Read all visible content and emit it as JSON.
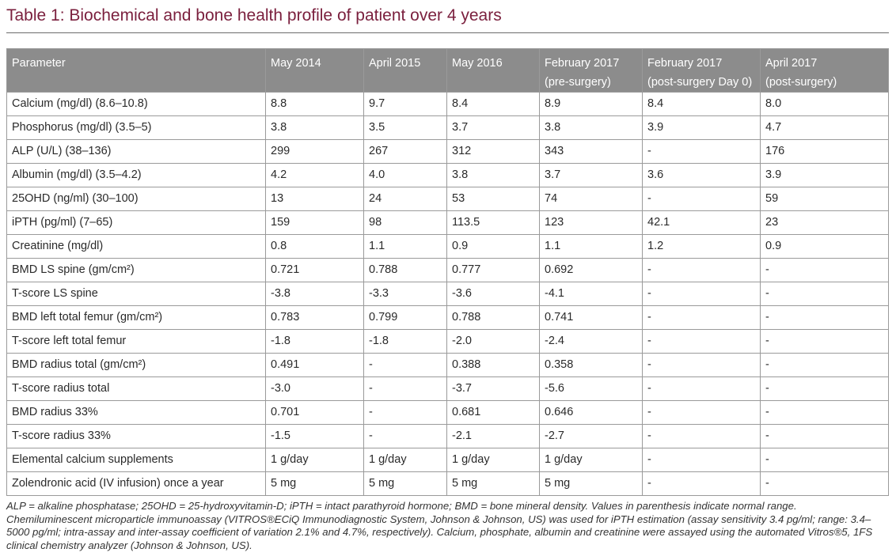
{
  "title": "Table 1: Biochemical and bone health profile of patient over 4 years",
  "table": {
    "headers": [
      "Parameter",
      "May 2014",
      "April 2015",
      "May 2016",
      "February 2017\n(pre-surgery)",
      "February 2017\n(post-surgery Day 0)",
      "April 2017\n(post-surgery)"
    ],
    "rows": [
      [
        "Calcium (mg/dl) (8.6–10.8)",
        "8.8",
        "9.7",
        "8.4",
        "8.9",
        "8.4",
        "8.0"
      ],
      [
        "Phosphorus (mg/dl) (3.5–5)",
        "3.8",
        "3.5",
        "3.7",
        "3.8",
        "3.9",
        "4.7"
      ],
      [
        "ALP (U/L) (38–136)",
        "299",
        "267",
        "312",
        "343",
        "-",
        "176"
      ],
      [
        "Albumin (mg/dl) (3.5–4.2)",
        "4.2",
        "4.0",
        "3.8",
        "3.7",
        "3.6",
        "3.9"
      ],
      [
        "25OHD (ng/ml) (30–100)",
        "13",
        "24",
        "53",
        "74",
        "-",
        "59"
      ],
      [
        "iPTH (pg/ml) (7–65)",
        "159",
        "98",
        "113.5",
        "123",
        "42.1",
        "23"
      ],
      [
        "Creatinine (mg/dl)",
        "0.8",
        "1.1",
        "0.9",
        "1.1",
        "1.2",
        "0.9"
      ],
      [
        "BMD LS spine (gm/cm²)",
        "0.721",
        "0.788",
        "0.777",
        "0.692",
        "-",
        "-"
      ],
      [
        "T-score LS spine",
        "-3.8",
        "-3.3",
        "-3.6",
        "-4.1",
        "-",
        "-"
      ],
      [
        "BMD left total femur (gm/cm²)",
        "0.783",
        "0.799",
        "0.788",
        "0.741",
        "-",
        "-"
      ],
      [
        "T-score left total femur",
        "-1.8",
        "-1.8",
        "-2.0",
        "-2.4",
        "-",
        "-"
      ],
      [
        "BMD radius total (gm/cm²)",
        "0.491",
        "-",
        "0.388",
        "0.358",
        "-",
        "-"
      ],
      [
        "T-score radius total",
        "-3.0",
        "-",
        "-3.7",
        "-5.6",
        "-",
        "-"
      ],
      [
        "BMD radius 33%",
        "0.701",
        "-",
        "0.681",
        "0.646",
        "-",
        "-"
      ],
      [
        "T-score radius 33%",
        "-1.5",
        "-",
        "-2.1",
        "-2.7",
        "-",
        "-"
      ],
      [
        "Elemental calcium supplements",
        "1 g/day",
        "1 g/day",
        "1 g/day",
        "1 g/day",
        "-",
        "-"
      ],
      [
        "Zolendronic acid (IV infusion) once a year",
        "5 mg",
        "5 mg",
        "5 mg",
        "5 mg",
        "-",
        "-"
      ]
    ]
  },
  "footnote": {
    "line1": "ALP = alkaline phosphatase; 25OHD = 25-hydroxyvitamin-D; iPTH = intact parathyroid hormone; BMD = bone mineral density. Values in parenthesis indicate normal range.",
    "line2": "Chemiluminescent microparticle immunoassay (VITROS®ECiQ Immunodiagnostic System, Johnson & Johnson, US) was used for iPTH estimation (assay sensitivity 3.4 pg/ml; range: 3.4–5000 pg/ml; intra-assay and inter-assay coefficient of variation 2.1% and 4.7%, respectively). Calcium, phosphate, albumin and creatinine were assayed using the automated Vitros®5, 1FS clinical chemistry analyzer (Johnson & Johnson, US)."
  },
  "colors": {
    "title": "#7a1f3d",
    "header_bg": "#8c8c8c",
    "header_text": "#ffffff",
    "border": "#9a9a9a"
  }
}
